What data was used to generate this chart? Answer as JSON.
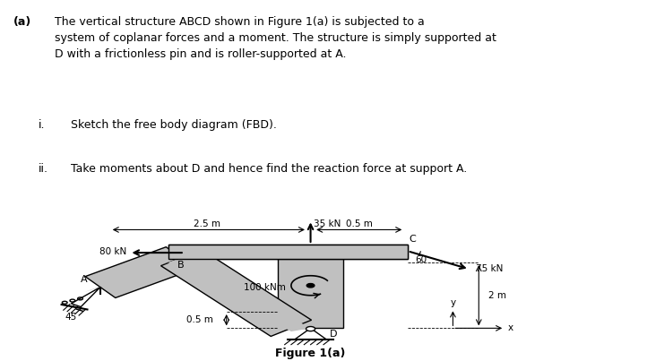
{
  "title_bold": "(a)",
  "title_text": "   The vertical structure ABCD shown in Figure 1(a) is subjected to a\nsystem of coplanar forces and a moment. The structure is simply supported at\nD with a frictionless pin and is roller-supported at A.",
  "item_i": "i.    Sketch the free body diagram (FBD).",
  "item_ii": "ii.   Take moments about D and hence find the reaction force at support A.",
  "figure_caption": "Figure 1(a)",
  "bg_color": "#ffffff",
  "structure_color": "#c0c0c0",
  "structure_edge": "#000000",
  "text_color": "#000000",
  "force_color": "#000000"
}
